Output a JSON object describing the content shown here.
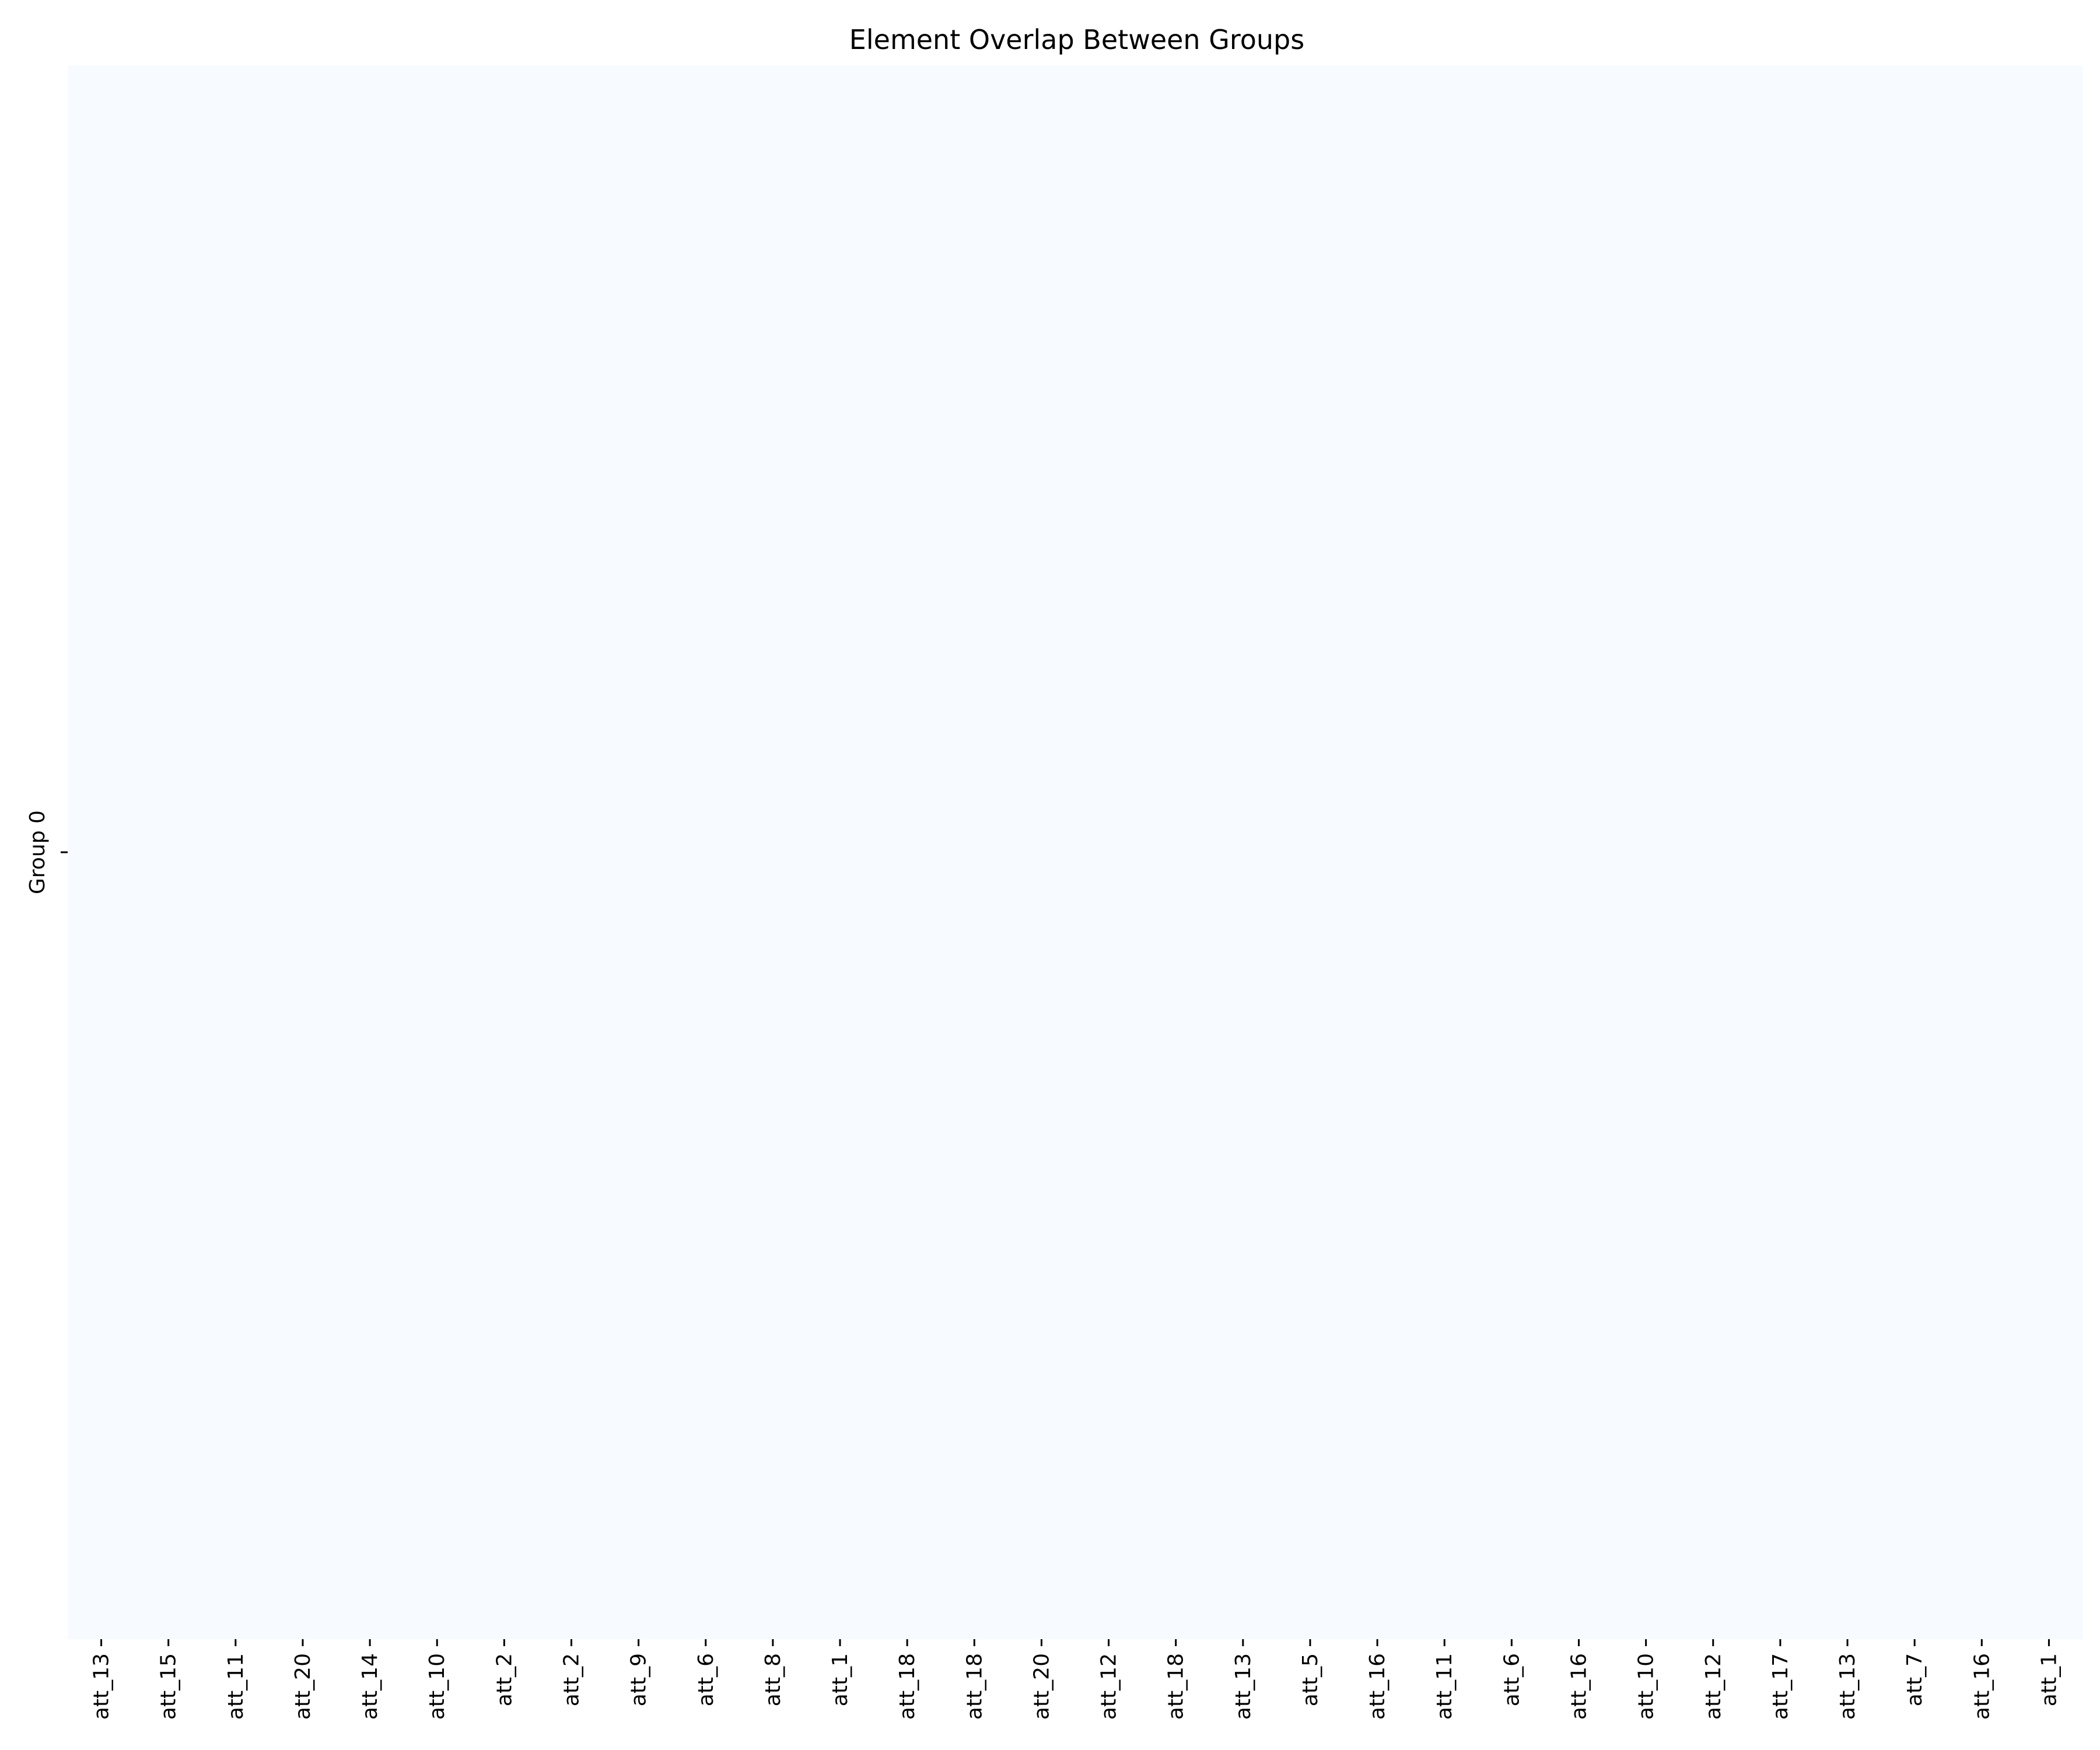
{
  "chart_data": {
    "type": "heatmap",
    "title": "Element Overlap Between Groups",
    "xlabel": "",
    "ylabel": "",
    "x": [
      "att_13",
      "att_15",
      "att_11",
      "att_20",
      "att_14",
      "att_10",
      "att_2",
      "att_2",
      "att_9",
      "att_6",
      "att_8",
      "att_1",
      "att_18",
      "att_18",
      "att_20",
      "att_12",
      "att_18",
      "att_13",
      "att_5",
      "att_16",
      "att_11",
      "att_6",
      "att_16",
      "att_10",
      "att_12",
      "att_17",
      "att_13",
      "att_7",
      "att_16",
      "att_1"
    ],
    "y": [
      "Group 0"
    ],
    "values": [
      [
        0,
        0,
        0,
        0,
        0,
        0,
        0,
        0,
        0,
        0,
        0,
        0,
        0,
        0,
        0,
        0,
        0,
        0,
        0,
        0,
        0,
        0,
        0,
        0,
        0,
        0,
        0,
        0,
        0,
        0
      ]
    ],
    "colormap": "Blues",
    "cell_color": "#f7fbff",
    "colorbar": false,
    "grid": false
  }
}
